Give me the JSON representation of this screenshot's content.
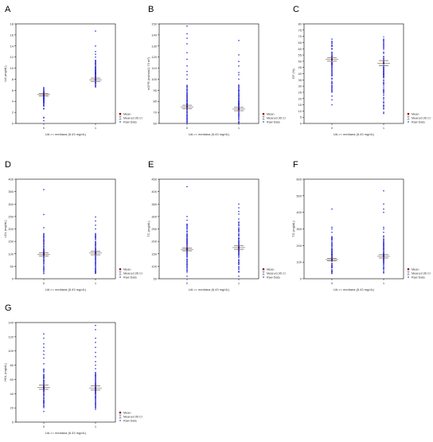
{
  "panels": [
    {
      "letter": "A",
      "ylabel": "UA (mg/dL)"
    },
    {
      "letter": "B",
      "ylabel": "eGFR (ml/min/1.73 m²)"
    },
    {
      "letter": "C",
      "ylabel": "EF (%)"
    },
    {
      "letter": "D",
      "ylabel": "LDL (mg/dL)"
    },
    {
      "letter": "E",
      "ylabel": "TC (mg/dL)"
    },
    {
      "letter": "F",
      "ylabel": "TG (mg/dL)"
    },
    {
      "letter": "G",
      "ylabel": "HDL (mg/dL)"
    }
  ],
  "legend": {
    "mean": "Mean",
    "ci": "Mean±0.95 Cl",
    "raw": "Raw Data"
  },
  "colors": {
    "points": "#2a2ad8",
    "mean": "#8b0000",
    "axis": "#000000",
    "ci": "#444444"
  },
  "chart_data": [
    {
      "type": "scatter",
      "panel": "A",
      "xlabel": "UA >= mediana (6.43 mg/dL)",
      "ylabel": "UA (mg/dL)",
      "categories": [
        "0",
        "1"
      ],
      "ylim": [
        0,
        18
      ],
      "yticks": [
        0,
        2,
        4,
        6,
        8,
        10,
        12,
        14,
        16,
        18
      ],
      "ranges": [
        [
          2.6,
          6.5
        ],
        [
          6.5,
          11.5
        ]
      ],
      "outliers": [
        [
          1.1,
          0.5,
          1.0
        ],
        [
          12.0,
          12.5,
          13.0,
          14.0,
          16.7
        ]
      ],
      "means": [
        5.2,
        7.9
      ],
      "ci": [
        [
          5.0,
          5.4
        ],
        [
          7.6,
          8.2
        ]
      ]
    },
    {
      "type": "scatter",
      "panel": "B",
      "xlabel": "UA >= mediana (6.43 mg/dL)",
      "ylabel": "eGFR (ml/min/1.73 m²)",
      "categories": [
        "0",
        "1"
      ],
      "ylim": [
        60,
        150
      ],
      "yticks": [
        60,
        70,
        80,
        90,
        100,
        110,
        120,
        130,
        140,
        150
      ],
      "ranges": [
        [
          60,
          95
        ],
        [
          60,
          95
        ]
      ],
      "outliers": [
        [
          100,
          104,
          107,
          112,
          118,
          124,
          132,
          137,
          141,
          148
        ],
        [
          100,
          104,
          106,
          112,
          116,
          122,
          135
        ]
      ],
      "means": [
        75,
        73
      ],
      "ci": [
        [
          73.5,
          76.5
        ],
        [
          71.5,
          74.5
        ]
      ]
    },
    {
      "type": "scatter",
      "panel": "C",
      "xlabel": "UA >= mediana (6.43 mg/dL)",
      "ylabel": "EF (%)",
      "categories": [
        "0",
        "1"
      ],
      "ylim": [
        0,
        80
      ],
      "yticks": [
        0,
        5,
        10,
        15,
        20,
        25,
        30,
        35,
        40,
        45,
        50,
        55,
        60,
        65,
        70,
        75,
        80
      ],
      "ranges": [
        [
          25,
          70
        ],
        [
          10,
          70
        ]
      ],
      "outliers": [
        [
          15,
          19,
          22
        ],
        [
          8,
          9
        ]
      ],
      "means": [
        51.5,
        48.5
      ],
      "ci": [
        [
          50,
          53
        ],
        [
          46.5,
          50.5
        ]
      ]
    },
    {
      "type": "scatter",
      "panel": "D",
      "xlabel": "UA >= mediana (6.43 mg/dL)",
      "ylabel": "LDL (mg/dL)",
      "categories": [
        "0",
        "1"
      ],
      "ylim": [
        0,
        400
      ],
      "yticks": [
        0,
        50,
        100,
        150,
        200,
        250,
        300,
        350,
        400
      ],
      "ranges": [
        [
          20,
          190
        ],
        [
          20,
          190
        ]
      ],
      "outliers": [
        [
          205,
          258,
          358
        ],
        [
          200,
          215,
          232,
          248
        ]
      ],
      "means": [
        98,
        103
      ],
      "ci": [
        [
          92,
          104
        ],
        [
          96,
          110
        ]
      ]
    },
    {
      "type": "scatter",
      "panel": "E",
      "xlabel": "UA >= mediana (6.43 mg/dL)",
      "ylabel": "TC (mg/dL)",
      "categories": [
        "0",
        "1"
      ],
      "ylim": [
        50,
        450
      ],
      "yticks": [
        50,
        100,
        150,
        200,
        250,
        300,
        350,
        400,
        450
      ],
      "ranges": [
        [
          75,
          270
        ],
        [
          75,
          280
        ]
      ],
      "outliers": [
        [
          60,
          285,
          300,
          420
        ],
        [
          60,
          290,
          310,
          320,
          335,
          350
        ]
      ],
      "means": [
        168,
        175
      ],
      "ci": [
        [
          162,
          174
        ],
        [
          168,
          182
        ]
      ]
    },
    {
      "type": "scatter",
      "panel": "F",
      "xlabel": "UA >= mediana (6.43 mg/dL)",
      "ylabel": "TG (mg/dL)",
      "categories": [
        "0",
        "1"
      ],
      "ylim": [
        0,
        600
      ],
      "yticks": [
        0,
        100,
        200,
        300,
        400,
        500,
        600
      ],
      "ranges": [
        [
          30,
          260
        ],
        [
          30,
          260
        ]
      ],
      "outliers": [
        [
          280,
          300,
          310,
          420
        ],
        [
          280,
          300,
          310,
          400,
          420,
          450,
          530
        ]
      ],
      "means": [
        115,
        135
      ],
      "ci": [
        [
          107,
          123
        ],
        [
          125,
          145
        ]
      ]
    },
    {
      "type": "scatter",
      "panel": "G",
      "xlabel": "UA >= mediana (6.43 mg/dL)",
      "ylabel": "HDL (mg/dL)",
      "categories": [
        "0",
        "1"
      ],
      "ylim": [
        0,
        140
      ],
      "yticks": [
        0,
        20,
        40,
        60,
        80,
        100,
        120,
        140
      ],
      "ranges": [
        [
          20,
          75
        ],
        [
          20,
          70
        ]
      ],
      "outliers": [
        [
          15,
          82,
          90,
          95,
          100,
          105,
          110,
          118,
          124
        ],
        [
          18,
          75,
          80,
          85,
          92,
          98,
          105,
          112,
          118,
          130,
          136
        ]
      ],
      "means": [
        49,
        48
      ],
      "ci": [
        [
          46,
          52
        ],
        [
          45,
          51
        ]
      ]
    }
  ]
}
